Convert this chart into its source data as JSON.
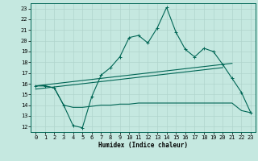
{
  "xlabel": "Humidex (Indice chaleur)",
  "x_ticks": [
    0,
    1,
    2,
    3,
    4,
    5,
    6,
    7,
    8,
    9,
    10,
    11,
    12,
    13,
    14,
    15,
    16,
    17,
    18,
    19,
    20,
    21,
    22,
    23
  ],
  "y_ticks": [
    12,
    13,
    14,
    15,
    16,
    17,
    18,
    19,
    20,
    21,
    22,
    23
  ],
  "xlim": [
    -0.5,
    23.5
  ],
  "ylim": [
    11.5,
    23.5
  ],
  "bg_color": "#c5e8e0",
  "grid_color": "#b0d4cc",
  "line_color": "#006655",
  "line1_x": [
    0,
    1,
    2,
    3,
    4,
    5,
    6,
    7,
    8,
    9,
    10,
    11,
    12,
    13,
    14,
    15,
    16,
    17,
    18,
    19,
    20,
    21,
    22,
    23
  ],
  "line1_y": [
    15.8,
    15.8,
    15.6,
    14.0,
    12.1,
    11.9,
    14.8,
    16.8,
    17.5,
    18.5,
    20.3,
    20.5,
    19.8,
    21.2,
    23.1,
    20.8,
    19.2,
    18.5,
    19.3,
    19.0,
    17.8,
    16.5,
    15.2,
    13.3
  ],
  "line2_x": [
    0,
    1,
    2,
    3,
    4,
    5,
    6,
    7,
    8,
    9,
    10,
    11,
    12,
    13,
    14,
    15,
    16,
    17,
    18,
    19,
    20,
    21,
    22,
    23
  ],
  "line2_y": [
    15.8,
    15.9,
    16.0,
    16.1,
    16.2,
    16.3,
    16.4,
    16.5,
    16.6,
    16.7,
    16.8,
    16.9,
    17.0,
    17.1,
    17.2,
    17.3,
    17.4,
    17.5,
    17.6,
    17.7,
    17.8,
    17.9,
    null,
    null
  ],
  "line3_x": [
    0,
    1,
    2,
    3,
    4,
    5,
    6,
    7,
    8,
    9,
    10,
    11,
    12,
    13,
    14,
    15,
    16,
    17,
    18,
    19,
    20,
    21,
    22,
    23
  ],
  "line3_y": [
    15.5,
    15.6,
    15.7,
    15.8,
    15.9,
    16.0,
    16.1,
    16.2,
    16.3,
    16.4,
    16.5,
    16.6,
    16.7,
    16.8,
    16.9,
    17.0,
    17.1,
    17.2,
    17.3,
    17.4,
    17.5,
    null,
    null,
    null
  ],
  "line4_x": [
    0,
    1,
    2,
    3,
    4,
    5,
    6,
    7,
    8,
    9,
    10,
    11,
    12,
    13,
    14,
    15,
    16,
    17,
    18,
    19,
    20,
    21,
    22,
    23
  ],
  "line4_y": [
    15.8,
    15.8,
    15.6,
    14.0,
    13.8,
    13.8,
    13.9,
    14.0,
    14.0,
    14.1,
    14.1,
    14.2,
    14.2,
    14.2,
    14.2,
    14.2,
    14.2,
    14.2,
    14.2,
    14.2,
    14.2,
    14.2,
    13.5,
    13.3
  ]
}
